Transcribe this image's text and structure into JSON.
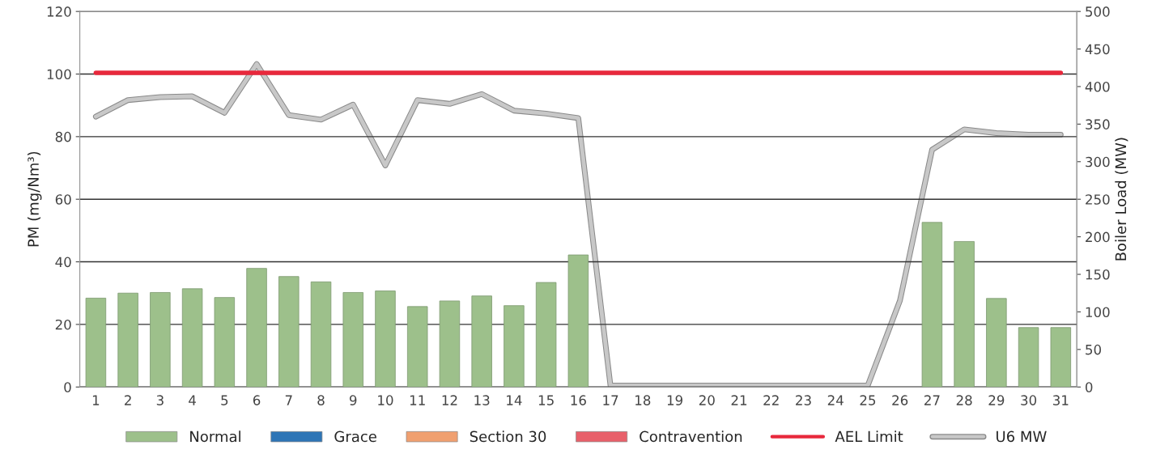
{
  "chart_data": {
    "type": "bar",
    "ylabel": "PM (mg/Nm³)",
    "y2label": "Boiler Load (MW)",
    "categories": [
      "1",
      "2",
      "3",
      "4",
      "5",
      "6",
      "7",
      "8",
      "9",
      "10",
      "11",
      "12",
      "13",
      "14",
      "15",
      "16",
      "17",
      "18",
      "19",
      "20",
      "21",
      "22",
      "23",
      "24",
      "25",
      "26",
      "27",
      "28",
      "29",
      "30",
      "31"
    ],
    "series": [
      {
        "name": "Normal",
        "color": "#9dc08b",
        "values": [
          28.4,
          30.0,
          30.2,
          31.4,
          28.6,
          37.9,
          35.3,
          33.6,
          30.2,
          30.7,
          25.7,
          27.5,
          29.1,
          26.0,
          33.4,
          42.2,
          null,
          null,
          null,
          null,
          null,
          null,
          null,
          null,
          null,
          null,
          52.6,
          46.5,
          28.3,
          19.0,
          19.0
        ]
      },
      {
        "name": "Grace",
        "color": "#2e75b6",
        "values": [
          null,
          null,
          null,
          null,
          null,
          null,
          null,
          null,
          null,
          null,
          null,
          null,
          null,
          null,
          null,
          null,
          null,
          null,
          null,
          null,
          null,
          null,
          null,
          null,
          null,
          null,
          null,
          null,
          null,
          null,
          null
        ]
      },
      {
        "name": "Section 30",
        "color": "#f0a070",
        "values": [
          null,
          null,
          null,
          null,
          null,
          null,
          null,
          null,
          null,
          null,
          null,
          null,
          null,
          null,
          null,
          null,
          null,
          null,
          null,
          null,
          null,
          null,
          null,
          null,
          null,
          null,
          null,
          null,
          null,
          null,
          null
        ]
      },
      {
        "name": "Contravention",
        "color": "#e8606a",
        "values": [
          null,
          null,
          null,
          null,
          null,
          null,
          null,
          null,
          null,
          null,
          null,
          null,
          null,
          null,
          null,
          null,
          null,
          null,
          null,
          null,
          null,
          null,
          null,
          null,
          null,
          null,
          null,
          null,
          null,
          null,
          null
        ]
      },
      {
        "name": "AEL Limit",
        "type": "line",
        "color": "#e8283c",
        "values": [
          100.4,
          100.4,
          100.4,
          100.4,
          100.4,
          100.4,
          100.4,
          100.4,
          100.4,
          100.4,
          100.4,
          100.4,
          100.4,
          100.4,
          100.4,
          100.4,
          100.4,
          100.4,
          100.4,
          100.4,
          100.4,
          100.4,
          100.4,
          100.4,
          100.4,
          100.4,
          100.4,
          100.4,
          100.4,
          100.4,
          100.4
        ]
      },
      {
        "name": "U6 MW",
        "type": "line",
        "axis": "y2",
        "color": "#c8c8c8",
        "values": [
          360,
          382,
          386,
          387,
          365,
          430,
          362,
          356,
          376,
          295,
          382,
          377,
          390,
          368,
          364,
          358,
          2,
          2,
          2,
          2,
          2,
          2,
          2,
          2,
          2,
          115,
          316,
          343,
          338,
          336,
          336
        ]
      }
    ],
    "ylim": [
      0,
      120
    ],
    "yticks": [
      0,
      20,
      40,
      60,
      80,
      100,
      120
    ],
    "y2lim": [
      0,
      500
    ],
    "y2ticks": [
      0,
      50,
      100,
      150,
      200,
      250,
      300,
      350,
      400,
      450,
      500
    ],
    "grid": "y",
    "legend": "bottom",
    "marker": "none",
    "line_style": "solid"
  }
}
